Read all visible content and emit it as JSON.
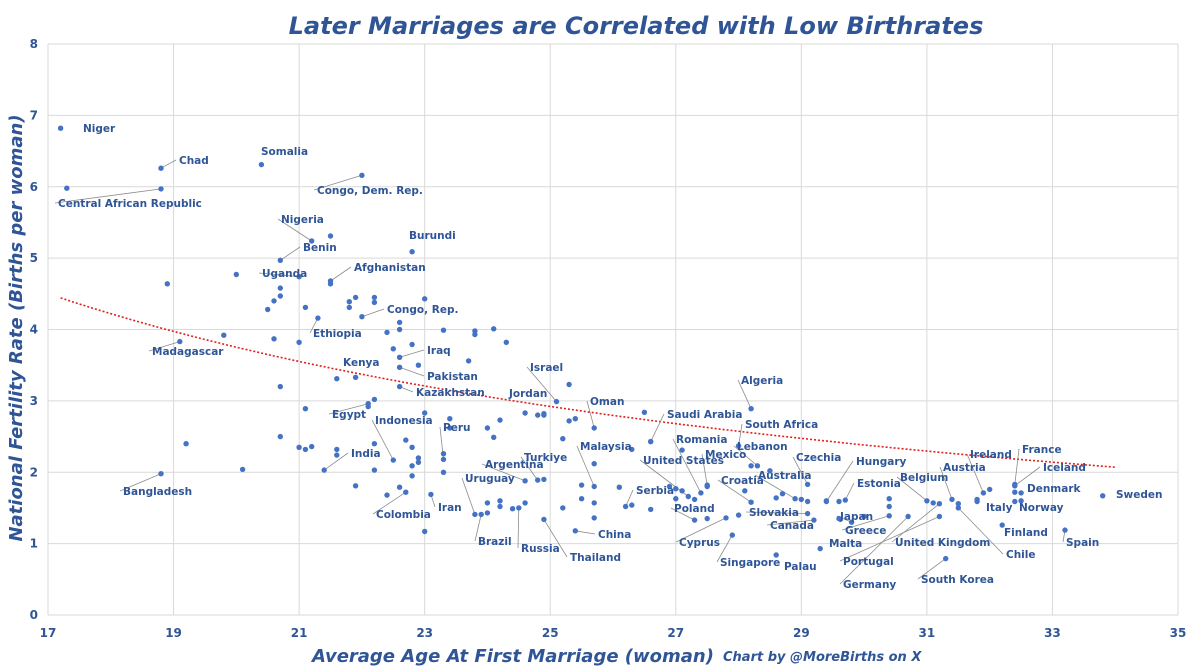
{
  "chart_data": {
    "type": "scatter",
    "title": "Later Marriages are Correlated with Low Birthrates",
    "xlabel": "Average Age At First Marriage (woman)",
    "ylabel": "National Fertility Rate (Births per woman)",
    "credit": "Chart by @MoreBirths on X",
    "xlim": [
      17,
      35
    ],
    "ylim": [
      0,
      8
    ],
    "xticks": [
      17,
      19,
      21,
      23,
      25,
      27,
      29,
      31,
      33,
      35
    ],
    "yticks": [
      0,
      1,
      2,
      3,
      4,
      5,
      6,
      7,
      8
    ],
    "trendline": {
      "type": "power",
      "a": 107.5,
      "b": -1.12,
      "x_start": 17.2,
      "x_end": 34.0
    },
    "labeled_points": [
      {
        "name": "Niger",
        "x": 17.2,
        "y": 6.82
      },
      {
        "name": "Chad",
        "x": 18.8,
        "y": 6.26
      },
      {
        "name": "Central African Republic",
        "x": 18.8,
        "y": 5.97
      },
      {
        "name": "Somalia",
        "x": 20.4,
        "y": 6.31
      },
      {
        "name": "Congo, Dem. Rep.",
        "x": 22.0,
        "y": 6.16
      },
      {
        "name": "Nigeria",
        "x": 21.2,
        "y": 5.24
      },
      {
        "name": "Benin",
        "x": 20.7,
        "y": 4.97
      },
      {
        "name": "Burundi",
        "x": 22.8,
        "y": 5.09
      },
      {
        "name": "Uganda",
        "x": 21.0,
        "y": 4.74
      },
      {
        "name": "Afghanistan",
        "x": 21.5,
        "y": 4.68
      },
      {
        "name": "Congo, Rep.",
        "x": 22.0,
        "y": 4.18
      },
      {
        "name": "Ethiopia",
        "x": 21.3,
        "y": 4.16
      },
      {
        "name": "Madagascar",
        "x": 19.1,
        "y": 3.83
      },
      {
        "name": "Iraq",
        "x": 22.6,
        "y": 3.61
      },
      {
        "name": "Kenya",
        "x": 21.9,
        "y": 3.33
      },
      {
        "name": "Pakistan",
        "x": 22.6,
        "y": 3.47
      },
      {
        "name": "Kazakhstan",
        "x": 22.6,
        "y": 3.2
      },
      {
        "name": "Egypt",
        "x": 22.1,
        "y": 2.96
      },
      {
        "name": "Indonesia",
        "x": 22.5,
        "y": 2.17
      },
      {
        "name": "India",
        "x": 21.4,
        "y": 2.03
      },
      {
        "name": "Bangladesh",
        "x": 18.8,
        "y": 1.98
      },
      {
        "name": "Colombia",
        "x": 22.7,
        "y": 1.72
      },
      {
        "name": "Peru",
        "x": 23.3,
        "y": 2.18
      },
      {
        "name": "Iran",
        "x": 23.1,
        "y": 1.69
      },
      {
        "name": "Israel",
        "x": 25.1,
        "y": 2.99
      },
      {
        "name": "Jordan",
        "x": 24.9,
        "y": 2.8
      },
      {
        "name": "Oman",
        "x": 25.7,
        "y": 2.62
      },
      {
        "name": "Saudi Arabia",
        "x": 26.6,
        "y": 2.43
      },
      {
        "name": "Algeria",
        "x": 28.2,
        "y": 2.89
      },
      {
        "name": "South Africa",
        "x": 28.0,
        "y": 2.37
      },
      {
        "name": "Malaysia",
        "x": 25.7,
        "y": 1.8
      },
      {
        "name": "Argentina",
        "x": 24.6,
        "y": 1.88
      },
      {
        "name": "Turkiye",
        "x": 24.8,
        "y": 1.89
      },
      {
        "name": "Romania",
        "x": 27.4,
        "y": 1.71
      },
      {
        "name": "Lebanon",
        "x": 28.3,
        "y": 2.09
      },
      {
        "name": "Mexico",
        "x": 27.5,
        "y": 1.82
      },
      {
        "name": "United States",
        "x": 27.2,
        "y": 1.66
      },
      {
        "name": "Czechia",
        "x": 29.1,
        "y": 1.83
      },
      {
        "name": "Hungary",
        "x": 29.4,
        "y": 1.59
      },
      {
        "name": "Uruguay",
        "x": 23.8,
        "y": 1.41
      },
      {
        "name": "Serbia",
        "x": 26.2,
        "y": 1.52
      },
      {
        "name": "Poland",
        "x": 27.3,
        "y": 1.33
      },
      {
        "name": "Croatia",
        "x": 28.2,
        "y": 1.58
      },
      {
        "name": "Australia",
        "x": 28.9,
        "y": 1.63
      },
      {
        "name": "Estonia",
        "x": 29.7,
        "y": 1.61
      },
      {
        "name": "Slovakia",
        "x": 29.1,
        "y": 1.42
      },
      {
        "name": "Japan",
        "x": 29.8,
        "y": 1.3
      },
      {
        "name": "Canada",
        "x": 29.2,
        "y": 1.33
      },
      {
        "name": "Greece",
        "x": 30.4,
        "y": 1.39
      },
      {
        "name": "Malta",
        "x": 29.3,
        "y": 0.93
      },
      {
        "name": "Brazil",
        "x": 23.9,
        "y": 1.41
      },
      {
        "name": "Russia",
        "x": 24.5,
        "y": 1.5
      },
      {
        "name": "China",
        "x": 25.4,
        "y": 1.18
      },
      {
        "name": "Thailand",
        "x": 24.9,
        "y": 1.34
      },
      {
        "name": "Cyprus",
        "x": 27.8,
        "y": 1.36
      },
      {
        "name": "Singapore",
        "x": 27.9,
        "y": 1.12
      },
      {
        "name": "Palau",
        "x": 28.6,
        "y": 0.84
      },
      {
        "name": "Belgium",
        "x": 31.0,
        "y": 1.6
      },
      {
        "name": "Austria",
        "x": 31.4,
        "y": 1.62
      },
      {
        "name": "Ireland",
        "x": 31.9,
        "y": 1.71
      },
      {
        "name": "France",
        "x": 32.4,
        "y": 1.83
      },
      {
        "name": "Iceland",
        "x": 32.4,
        "y": 1.81
      },
      {
        "name": "Denmark",
        "x": 32.4,
        "y": 1.72
      },
      {
        "name": "Sweden",
        "x": 33.8,
        "y": 1.67
      },
      {
        "name": "Italy",
        "x": 31.8,
        "y": 1.59
      },
      {
        "name": "Norway",
        "x": 32.5,
        "y": 1.6
      },
      {
        "name": "Finland",
        "x": 32.2,
        "y": 1.26
      },
      {
        "name": "Spain",
        "x": 33.2,
        "y": 1.19
      },
      {
        "name": "United Kingdom",
        "x": 31.2,
        "y": 1.56
      },
      {
        "name": "Portugal",
        "x": 31.2,
        "y": 1.38
      },
      {
        "name": "Germany",
        "x": 30.7,
        "y": 1.38
      },
      {
        "name": "South Korea",
        "x": 31.3,
        "y": 0.79
      },
      {
        "name": "Chile",
        "x": 31.5,
        "y": 1.5
      }
    ],
    "unlabeled_points": [
      [
        17.3,
        5.98
      ],
      [
        18.9,
        4.64
      ],
      [
        19.8,
        3.92
      ],
      [
        20.0,
        4.77
      ],
      [
        20.5,
        4.28
      ],
      [
        20.6,
        4.4
      ],
      [
        20.7,
        4.47
      ],
      [
        20.7,
        4.58
      ],
      [
        20.6,
        3.87
      ],
      [
        21.0,
        3.82
      ],
      [
        21.1,
        4.31
      ],
      [
        21.5,
        5.31
      ],
      [
        21.5,
        4.64
      ],
      [
        21.8,
        4.39
      ],
      [
        21.9,
        4.45
      ],
      [
        21.8,
        4.31
      ],
      [
        22.2,
        4.45
      ],
      [
        22.2,
        4.38
      ],
      [
        22.4,
        3.96
      ],
      [
        22.6,
        4.1
      ],
      [
        22.6,
        4.0
      ],
      [
        22.5,
        3.73
      ],
      [
        22.8,
        3.79
      ],
      [
        22.9,
        3.5
      ],
      [
        23.0,
        4.43
      ],
      [
        23.3,
        3.99
      ],
      [
        23.7,
        3.56
      ],
      [
        23.8,
        3.93
      ],
      [
        23.8,
        3.98
      ],
      [
        24.1,
        4.01
      ],
      [
        24.3,
        3.82
      ],
      [
        23.4,
        2.75
      ],
      [
        23.4,
        2.62
      ],
      [
        23.0,
        2.83
      ],
      [
        22.1,
        2.92
      ],
      [
        22.2,
        3.02
      ],
      [
        21.6,
        3.31
      ],
      [
        20.7,
        3.2
      ],
      [
        21.1,
        2.89
      ],
      [
        20.7,
        2.5
      ],
      [
        21.1,
        2.32
      ],
      [
        21.2,
        2.36
      ],
      [
        21.6,
        2.32
      ],
      [
        22.2,
        2.4
      ],
      [
        22.2,
        2.03
      ],
      [
        22.7,
        2.45
      ],
      [
        22.8,
        2.35
      ],
      [
        22.9,
        2.2
      ],
      [
        22.9,
        2.14
      ],
      [
        22.8,
        2.09
      ],
      [
        22.8,
        1.95
      ],
      [
        23.3,
        2.0
      ],
      [
        23.3,
        2.26
      ],
      [
        24.0,
        2.62
      ],
      [
        24.1,
        2.49
      ],
      [
        24.2,
        2.73
      ],
      [
        24.6,
        2.83
      ],
      [
        24.8,
        2.8
      ],
      [
        24.9,
        2.82
      ],
      [
        25.2,
        2.47
      ],
      [
        25.3,
        2.72
      ],
      [
        25.3,
        3.23
      ],
      [
        25.4,
        2.75
      ],
      [
        25.7,
        2.12
      ],
      [
        26.1,
        1.79
      ],
      [
        26.3,
        2.32
      ],
      [
        26.5,
        2.84
      ],
      [
        26.6,
        2.43
      ],
      [
        26.9,
        1.8
      ],
      [
        27.0,
        1.77
      ],
      [
        27.1,
        2.31
      ],
      [
        27.1,
        1.74
      ],
      [
        27.3,
        1.62
      ],
      [
        27.5,
        1.8
      ],
      [
        28.1,
        1.74
      ],
      [
        28.2,
        2.09
      ],
      [
        28.5,
        2.02
      ],
      [
        28.6,
        1.64
      ],
      [
        28.7,
        1.7
      ],
      [
        29.0,
        1.62
      ],
      [
        29.1,
        1.59
      ],
      [
        29.4,
        1.6
      ],
      [
        30.0,
        1.38
      ],
      [
        30.4,
        1.63
      ],
      [
        30.4,
        1.52
      ],
      [
        31.1,
        1.57
      ],
      [
        31.5,
        1.56
      ],
      [
        31.8,
        1.62
      ],
      [
        32.0,
        1.76
      ],
      [
        32.4,
        1.59
      ],
      [
        32.5,
        1.71
      ],
      [
        19.2,
        2.4
      ],
      [
        20.1,
        2.04
      ],
      [
        21.0,
        2.35
      ],
      [
        21.6,
        2.24
      ],
      [
        21.9,
        1.81
      ],
      [
        22.4,
        1.68
      ],
      [
        22.6,
        1.79
      ],
      [
        23.0,
        1.17
      ],
      [
        24.0,
        1.43
      ],
      [
        24.0,
        1.57
      ],
      [
        24.2,
        1.52
      ],
      [
        24.2,
        1.6
      ],
      [
        24.4,
        1.49
      ],
      [
        24.6,
        1.57
      ],
      [
        24.9,
        1.9
      ],
      [
        25.2,
        1.5
      ],
      [
        25.5,
        1.63
      ],
      [
        25.5,
        1.82
      ],
      [
        25.7,
        1.57
      ],
      [
        25.7,
        1.36
      ],
      [
        26.3,
        1.54
      ],
      [
        26.6,
        1.48
      ],
      [
        27.0,
        1.63
      ],
      [
        27.5,
        1.35
      ],
      [
        28.0,
        1.4
      ],
      [
        29.6,
        1.59
      ],
      [
        29.6,
        1.35
      ]
    ]
  }
}
